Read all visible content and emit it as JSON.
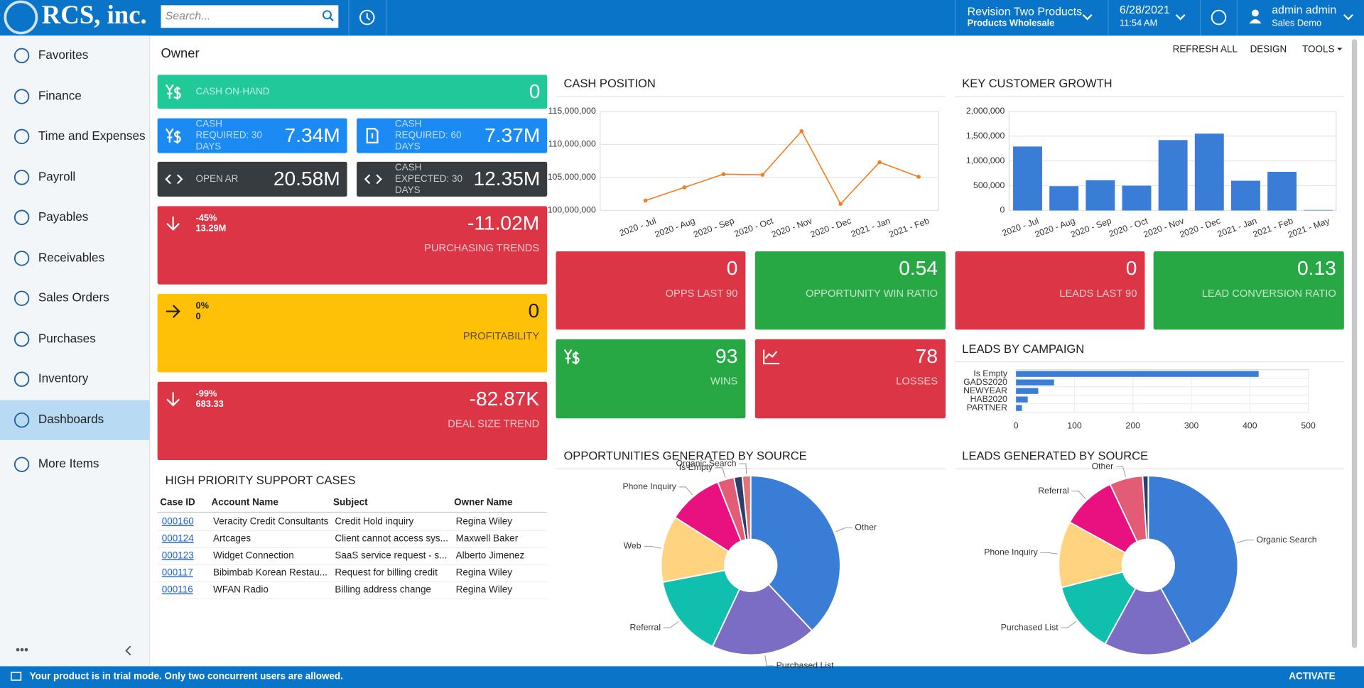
{
  "header": {
    "logo": "RCS, inc.",
    "search_placeholder": "Search...",
    "company": "Revision Two Products",
    "branch": "Products Wholesale",
    "date": "6/28/2021",
    "time": "11:54 AM",
    "user": "admin admin",
    "tenant": "Sales Demo"
  },
  "sidebar": {
    "items": [
      "Favorites",
      "Finance",
      "Time and Expenses",
      "Payroll",
      "Payables",
      "Receivables",
      "Sales Orders",
      "Purchases",
      "Inventory",
      "Dashboards",
      "More Items"
    ],
    "selected_index": 9
  },
  "page": {
    "title": "Owner",
    "actions": [
      "REFRESH ALL",
      "DESIGN",
      "TOOLS"
    ]
  },
  "tiles": [
    {
      "label_lines": [
        "CASH ON-HAND"
      ],
      "value": "0",
      "color": "#20c997"
    },
    {
      "label_lines": [
        "CASH",
        "REQUIRED: 30",
        "DAYS"
      ],
      "value": "7.34M",
      "color": "#1b8af2"
    },
    {
      "label_lines": [
        "CASH",
        "REQUIRED: 60",
        "DAYS"
      ],
      "value": "7.37M",
      "color": "#1b8af2"
    },
    {
      "label_lines": [
        "OPEN AR"
      ],
      "value": "20.58M",
      "color": "#373c41"
    },
    {
      "label_lines": [
        "CASH",
        "EXPECTED: 30",
        "DAYS"
      ],
      "value": "12.35M",
      "color": "#373c41"
    },
    {
      "label_lines": [
        "PURCHASING TRENDS"
      ],
      "value": "-11.02M",
      "sub": [
        "-45%",
        "13.29M"
      ],
      "color": "#dc3545"
    },
    {
      "label_lines": [
        "PROFITABILITY"
      ],
      "value": "0",
      "sub": [
        "0%",
        "0"
      ],
      "color": "#ffc107",
      "text_color": "#1f1f1f"
    },
    {
      "label_lines": [
        "DEAL SIZE TREND"
      ],
      "value": "-82.87K",
      "sub": [
        "-99%",
        "683.33"
      ],
      "color": "#dc3545"
    },
    {
      "label_lines": [
        "OPPS LAST 90"
      ],
      "value": "0",
      "color": "#dc3545"
    },
    {
      "label_lines": [
        "OPPORTUNITY WIN RATIO"
      ],
      "value": "0.54",
      "color": "#28a745"
    },
    {
      "label_lines": [
        "LEADS LAST 90"
      ],
      "value": "0",
      "color": "#dc3545"
    },
    {
      "label_lines": [
        "LEAD CONVERSION RATIO"
      ],
      "value": "0.13",
      "color": "#28a745"
    },
    {
      "label_lines": [
        "WINS"
      ],
      "value": "93",
      "color": "#28a745"
    },
    {
      "label_lines": [
        "LOSSES"
      ],
      "value": "78",
      "color": "#dc3545"
    }
  ],
  "chart_data": [
    {
      "type": "line",
      "title": "CASH POSITION",
      "color": "#f57c1f",
      "grid": true,
      "categories": [
        "2020 - Jul",
        "2020 - Aug",
        "2020 - Sep",
        "2020 - Oct",
        "2020 - Nov",
        "2020 - Dec",
        "2021 - Jan",
        "2021 - Feb"
      ],
      "values": [
        101500000,
        103500000,
        105500000,
        105400000,
        112000000,
        101000000,
        107300000,
        105100000
      ],
      "ylim": [
        100000000,
        115000000
      ],
      "yticks": [
        {
          "value": 100000000,
          "label": "100,000,000"
        },
        {
          "value": 105000000,
          "label": "105,000,000"
        },
        {
          "value": 110000000,
          "label": "110,000,000"
        },
        {
          "value": 115000000,
          "label": "115,000,000"
        }
      ]
    },
    {
      "type": "bar",
      "title": "KEY CUSTOMER GROWTH",
      "color": "#3a7dd6",
      "grid": true,
      "categories": [
        "2020 - Jul",
        "2020 - Aug",
        "2020 - Sep",
        "2020 - Oct",
        "2020 - Nov",
        "2020 - Dec",
        "2021 - Jan",
        "2021 - Feb",
        "2021 - May"
      ],
      "values": [
        1290000,
        490000,
        610000,
        500000,
        1420000,
        1550000,
        600000,
        780000,
        10000
      ],
      "ylim": [
        0,
        2000000
      ],
      "yticks": [
        0,
        {
          "value": 500000,
          "label": "500,000"
        },
        {
          "value": 1000000,
          "label": "1,000,000"
        },
        {
          "value": 1500000,
          "label": "1,500,000"
        },
        {
          "value": 2000000,
          "label": "2,000,000"
        }
      ]
    },
    {
      "type": "hbar",
      "title": "LEADS BY CAMPAIGN",
      "color": "#3a7dd6",
      "grid": true,
      "categories": [
        "Is Empty",
        "GADS2020",
        "NEWYEAR",
        "HAB2020",
        "PARTNER"
      ],
      "values": [
        415,
        65,
        38,
        20,
        10
      ],
      "xlim": [
        0,
        500
      ],
      "xticks": [
        0,
        100,
        200,
        300,
        400,
        500
      ]
    },
    {
      "type": "pie",
      "title": "OPPORTUNITIES GENERATED BY SOURCE",
      "categories": [
        "Other",
        "Purchased List",
        "Referral",
        "Web",
        "Phone Inquiry",
        "Is Empty",
        null,
        "Organic Search"
      ],
      "values": [
        38,
        19,
        15,
        12,
        10,
        3,
        1.5,
        1.5
      ],
      "colors": [
        "#3a7dd6",
        "#7b6cc4",
        "#10bfae",
        "#ffd37f",
        "#e8117f",
        "#e25c75",
        "#2c3e6b",
        "#e57373"
      ]
    },
    {
      "type": "pie",
      "title": "LEADS GENERATED BY SOURCE",
      "categories": [
        "Organic Search",
        null,
        "Purchased List",
        "Phone Inquiry",
        "Referral",
        "Other",
        null
      ],
      "values": [
        42,
        16,
        13,
        12,
        10,
        6,
        1
      ],
      "colors": [
        "#3a7dd6",
        "#7b6cc4",
        "#10bfae",
        "#ffd37f",
        "#e8117f",
        "#e25c75",
        "#2c3e6b"
      ]
    }
  ],
  "support_cases": {
    "title": "HIGH PRIORITY SUPPORT CASES",
    "columns": [
      "Case ID",
      "Account Name",
      "Subject",
      "Owner Name"
    ],
    "rows": [
      [
        "000160",
        "Veracity Credit Consultants",
        "Credit Hold inquiry",
        "Regina Wiley"
      ],
      [
        "000124",
        "Artcages",
        "Client cannot access sys...",
        "Maxwell Baker"
      ],
      [
        "000123",
        "Widget Connection",
        "SaaS service request - s...",
        "Alberto Jimenez"
      ],
      [
        "000117",
        "Bibimbab Korean Restau...",
        "Request for billing credit",
        "Regina Wiley"
      ],
      [
        "000116",
        "WFAN Radio",
        "Billing address change",
        "Regina Wiley"
      ]
    ]
  },
  "footer": {
    "message": "Your product is in trial mode. Only two concurrent users are allowed.",
    "action": "ACTIVATE"
  }
}
